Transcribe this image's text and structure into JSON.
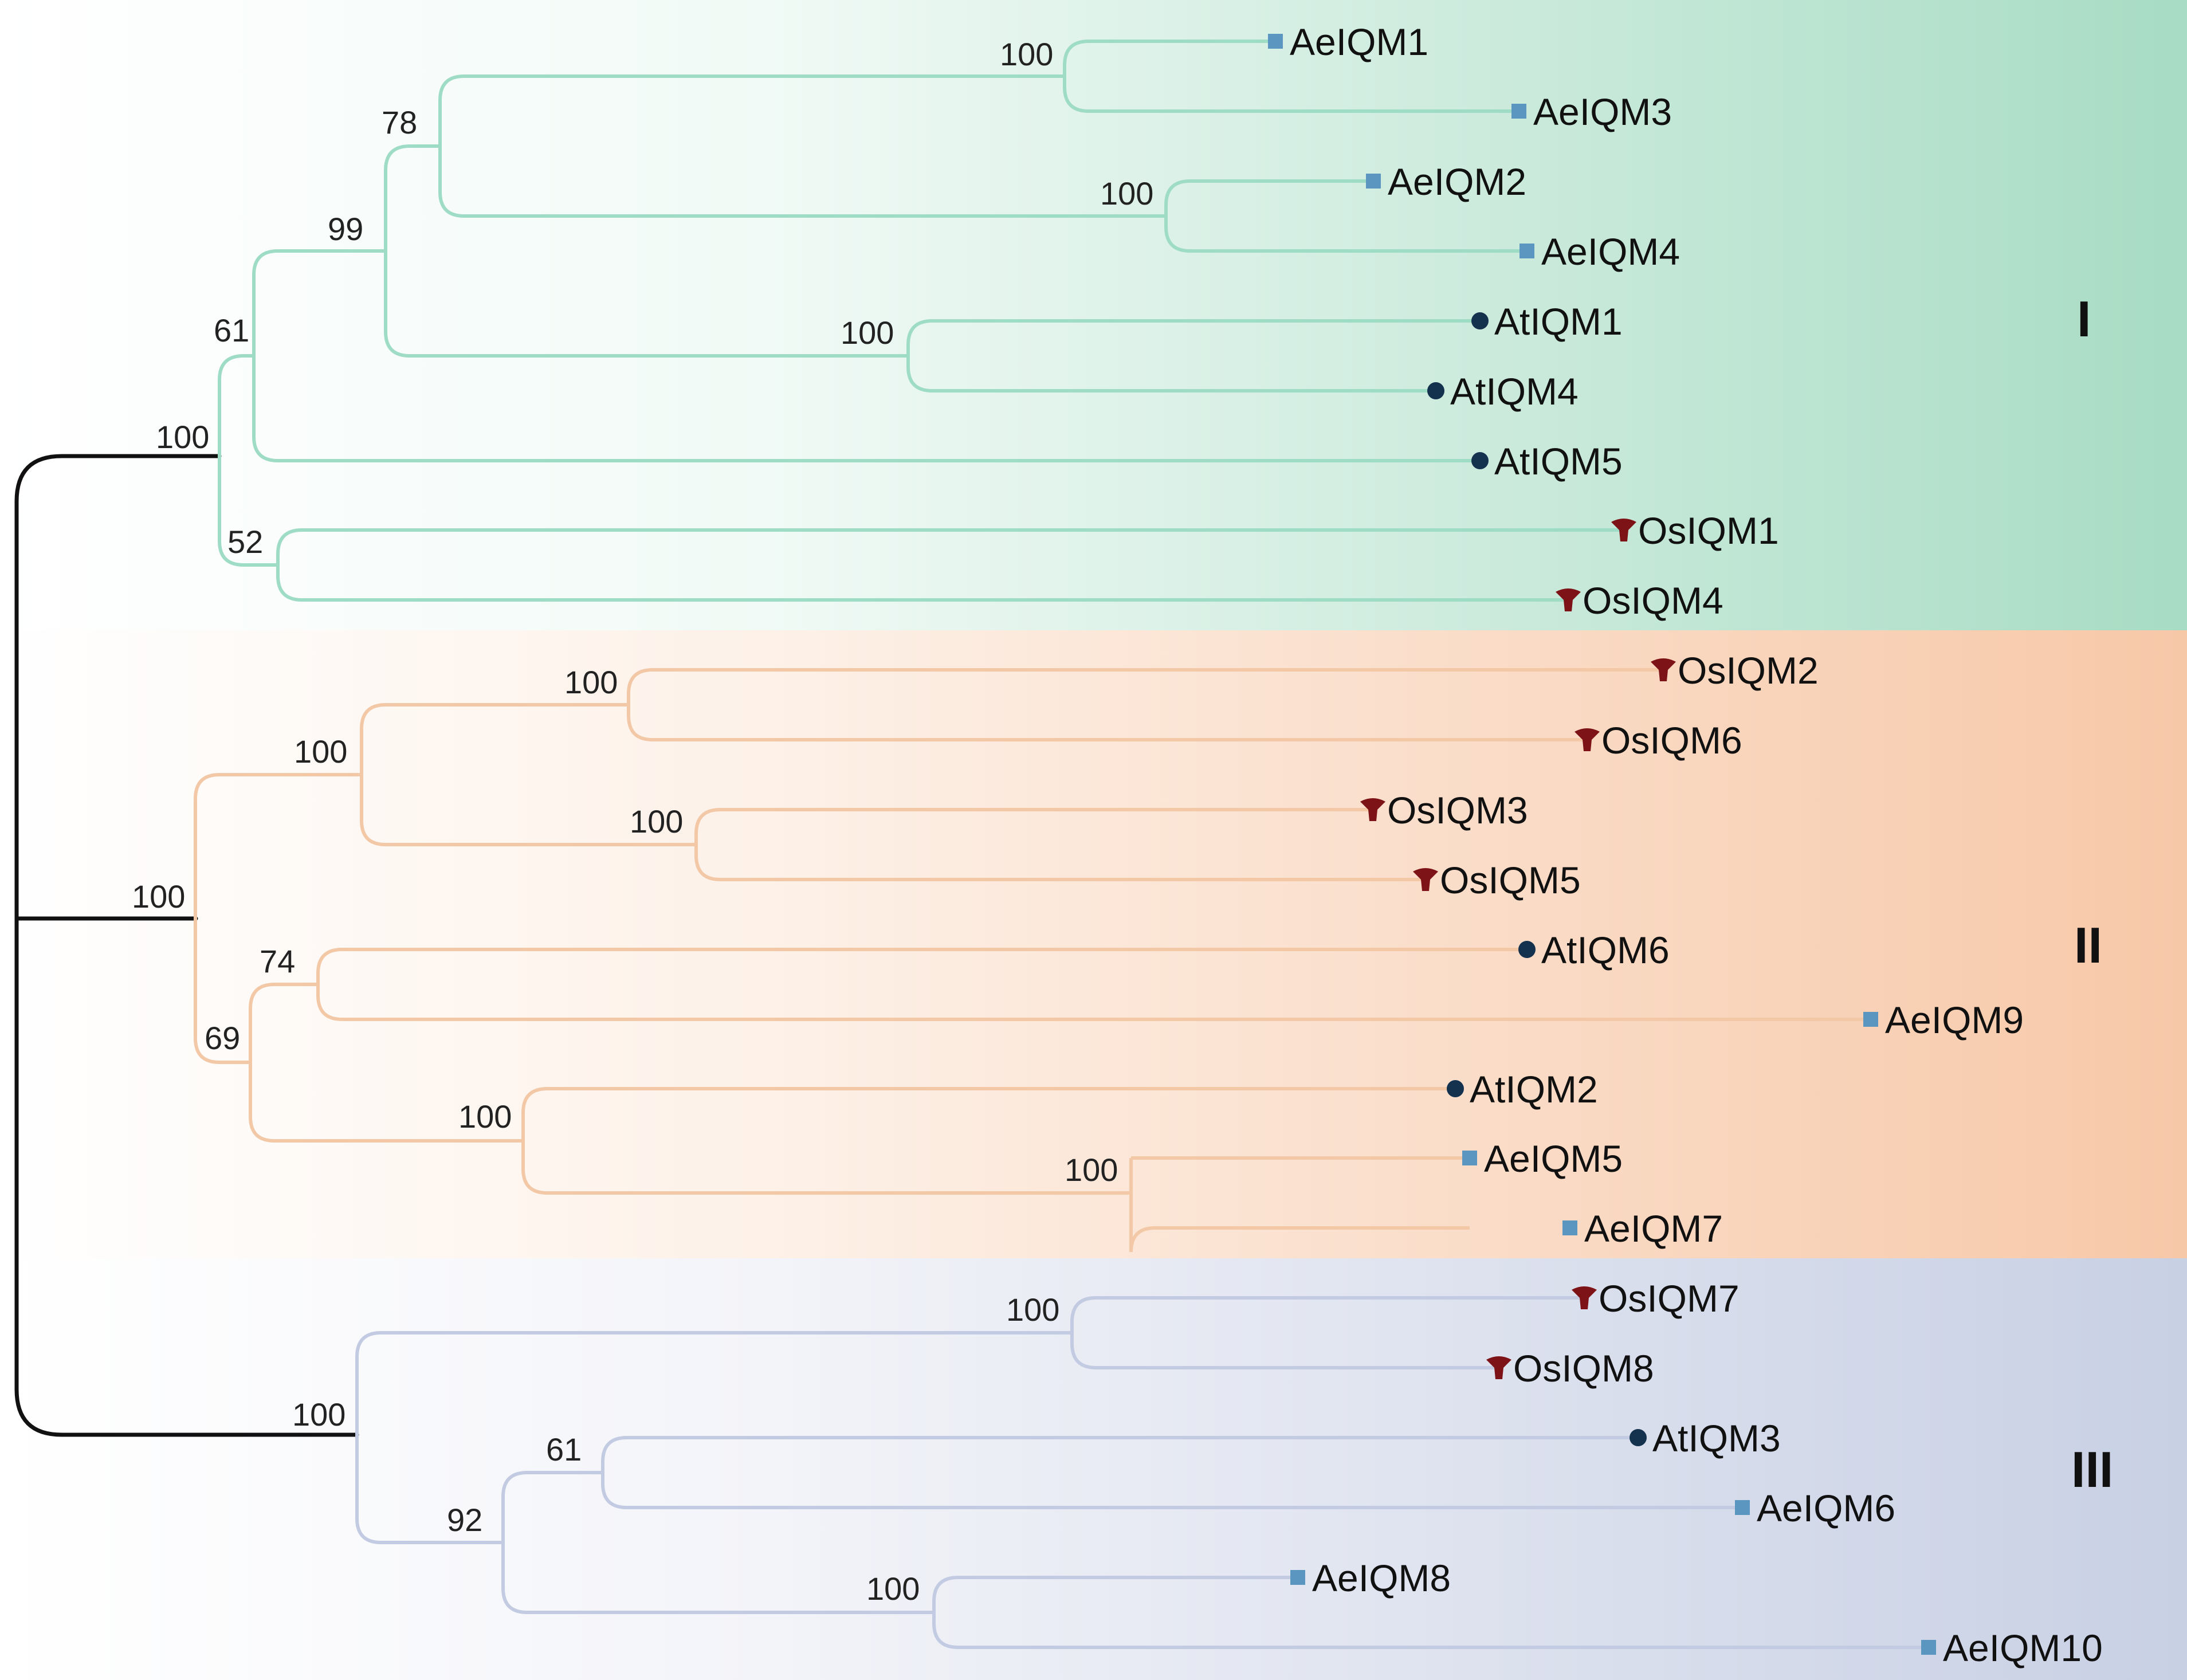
{
  "figure": {
    "type": "phylogenetic-tree",
    "clades": [
      {
        "id": "I",
        "label": "I",
        "color": "#a8dcc4",
        "branch_color": "#9fdcc6"
      },
      {
        "id": "II",
        "label": "II",
        "color": "#f7c8a8",
        "branch_color": "#f3c8a6"
      },
      {
        "id": "III",
        "label": "III",
        "color": "#c8d0e4",
        "branch_color": "#c3cbe3"
      }
    ],
    "species_markers": {
      "Ae": {
        "shape": "square",
        "color": "#5b96c1"
      },
      "At": {
        "shape": "circle",
        "color": "#14314d"
      },
      "Os": {
        "shape": "tri-star",
        "color": "#7d1316"
      }
    },
    "leaves": [
      {
        "name": "AeIQM1",
        "species": "Ae",
        "clade": "I"
      },
      {
        "name": "AeIQM3",
        "species": "Ae",
        "clade": "I"
      },
      {
        "name": "AeIQM2",
        "species": "Ae",
        "clade": "I"
      },
      {
        "name": "AeIQM4",
        "species": "Ae",
        "clade": "I"
      },
      {
        "name": "AtIQM1",
        "species": "At",
        "clade": "I"
      },
      {
        "name": "AtIQM4",
        "species": "At",
        "clade": "I"
      },
      {
        "name": "AtIQM5",
        "species": "At",
        "clade": "I"
      },
      {
        "name": "OsIQM1",
        "species": "Os",
        "clade": "I"
      },
      {
        "name": "OsIQM4",
        "species": "Os",
        "clade": "I"
      },
      {
        "name": "OsIQM2",
        "species": "Os",
        "clade": "II"
      },
      {
        "name": "OsIQM6",
        "species": "Os",
        "clade": "II"
      },
      {
        "name": "OsIQM3",
        "species": "Os",
        "clade": "II"
      },
      {
        "name": "OsIQM5",
        "species": "Os",
        "clade": "II"
      },
      {
        "name": "AtIQM6",
        "species": "At",
        "clade": "II"
      },
      {
        "name": "AeIQM9",
        "species": "Ae",
        "clade": "II"
      },
      {
        "name": "AtIQM2",
        "species": "At",
        "clade": "II"
      },
      {
        "name": "AeIQM5",
        "species": "Ae",
        "clade": "II"
      },
      {
        "name": "AeIQM7",
        "species": "Ae",
        "clade": "II"
      },
      {
        "name": "OsIQM7",
        "species": "Os",
        "clade": "III"
      },
      {
        "name": "OsIQM8",
        "species": "Os",
        "clade": "III"
      },
      {
        "name": "AtIQM3",
        "species": "At",
        "clade": "III"
      },
      {
        "name": "AeIQM6",
        "species": "Ae",
        "clade": "III"
      },
      {
        "name": "AeIQM8",
        "species": "Ae",
        "clade": "III"
      },
      {
        "name": "AeIQM10",
        "species": "Ae",
        "clade": "III"
      }
    ],
    "support_values": [
      "100",
      "78",
      "100",
      "99",
      "100",
      "61",
      "100",
      "52",
      "100",
      "100",
      "100",
      "100",
      "74",
      "69",
      "100",
      "100",
      "100",
      "100",
      "61",
      "92",
      "100"
    ]
  }
}
